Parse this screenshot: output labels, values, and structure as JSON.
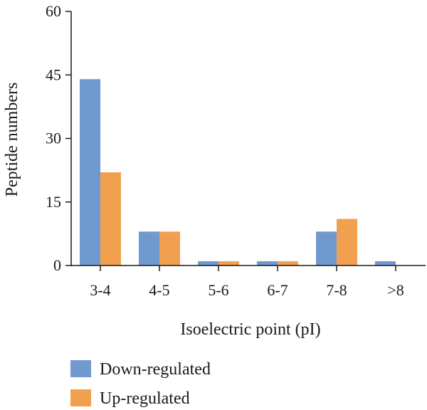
{
  "chart_data": {
    "type": "bar",
    "title": "",
    "xlabel": "Isoelectric point (pI)",
    "ylabel": "Peptide numbers",
    "ylim": [
      0,
      60
    ],
    "yticks": [
      0,
      15,
      30,
      45,
      60
    ],
    "categories": [
      "3-4",
      "4-5",
      "5-6",
      "6-7",
      "7-8",
      ">8"
    ],
    "series": [
      {
        "name": "Down-regulated",
        "color": "#6f99cf",
        "values": [
          44,
          8,
          1,
          1,
          8,
          1
        ]
      },
      {
        "name": "Up-regulated",
        "color": "#f0a04e",
        "values": [
          22,
          8,
          1,
          1,
          11,
          0
        ]
      }
    ],
    "grid": false,
    "legend_position": "bottom-left"
  }
}
